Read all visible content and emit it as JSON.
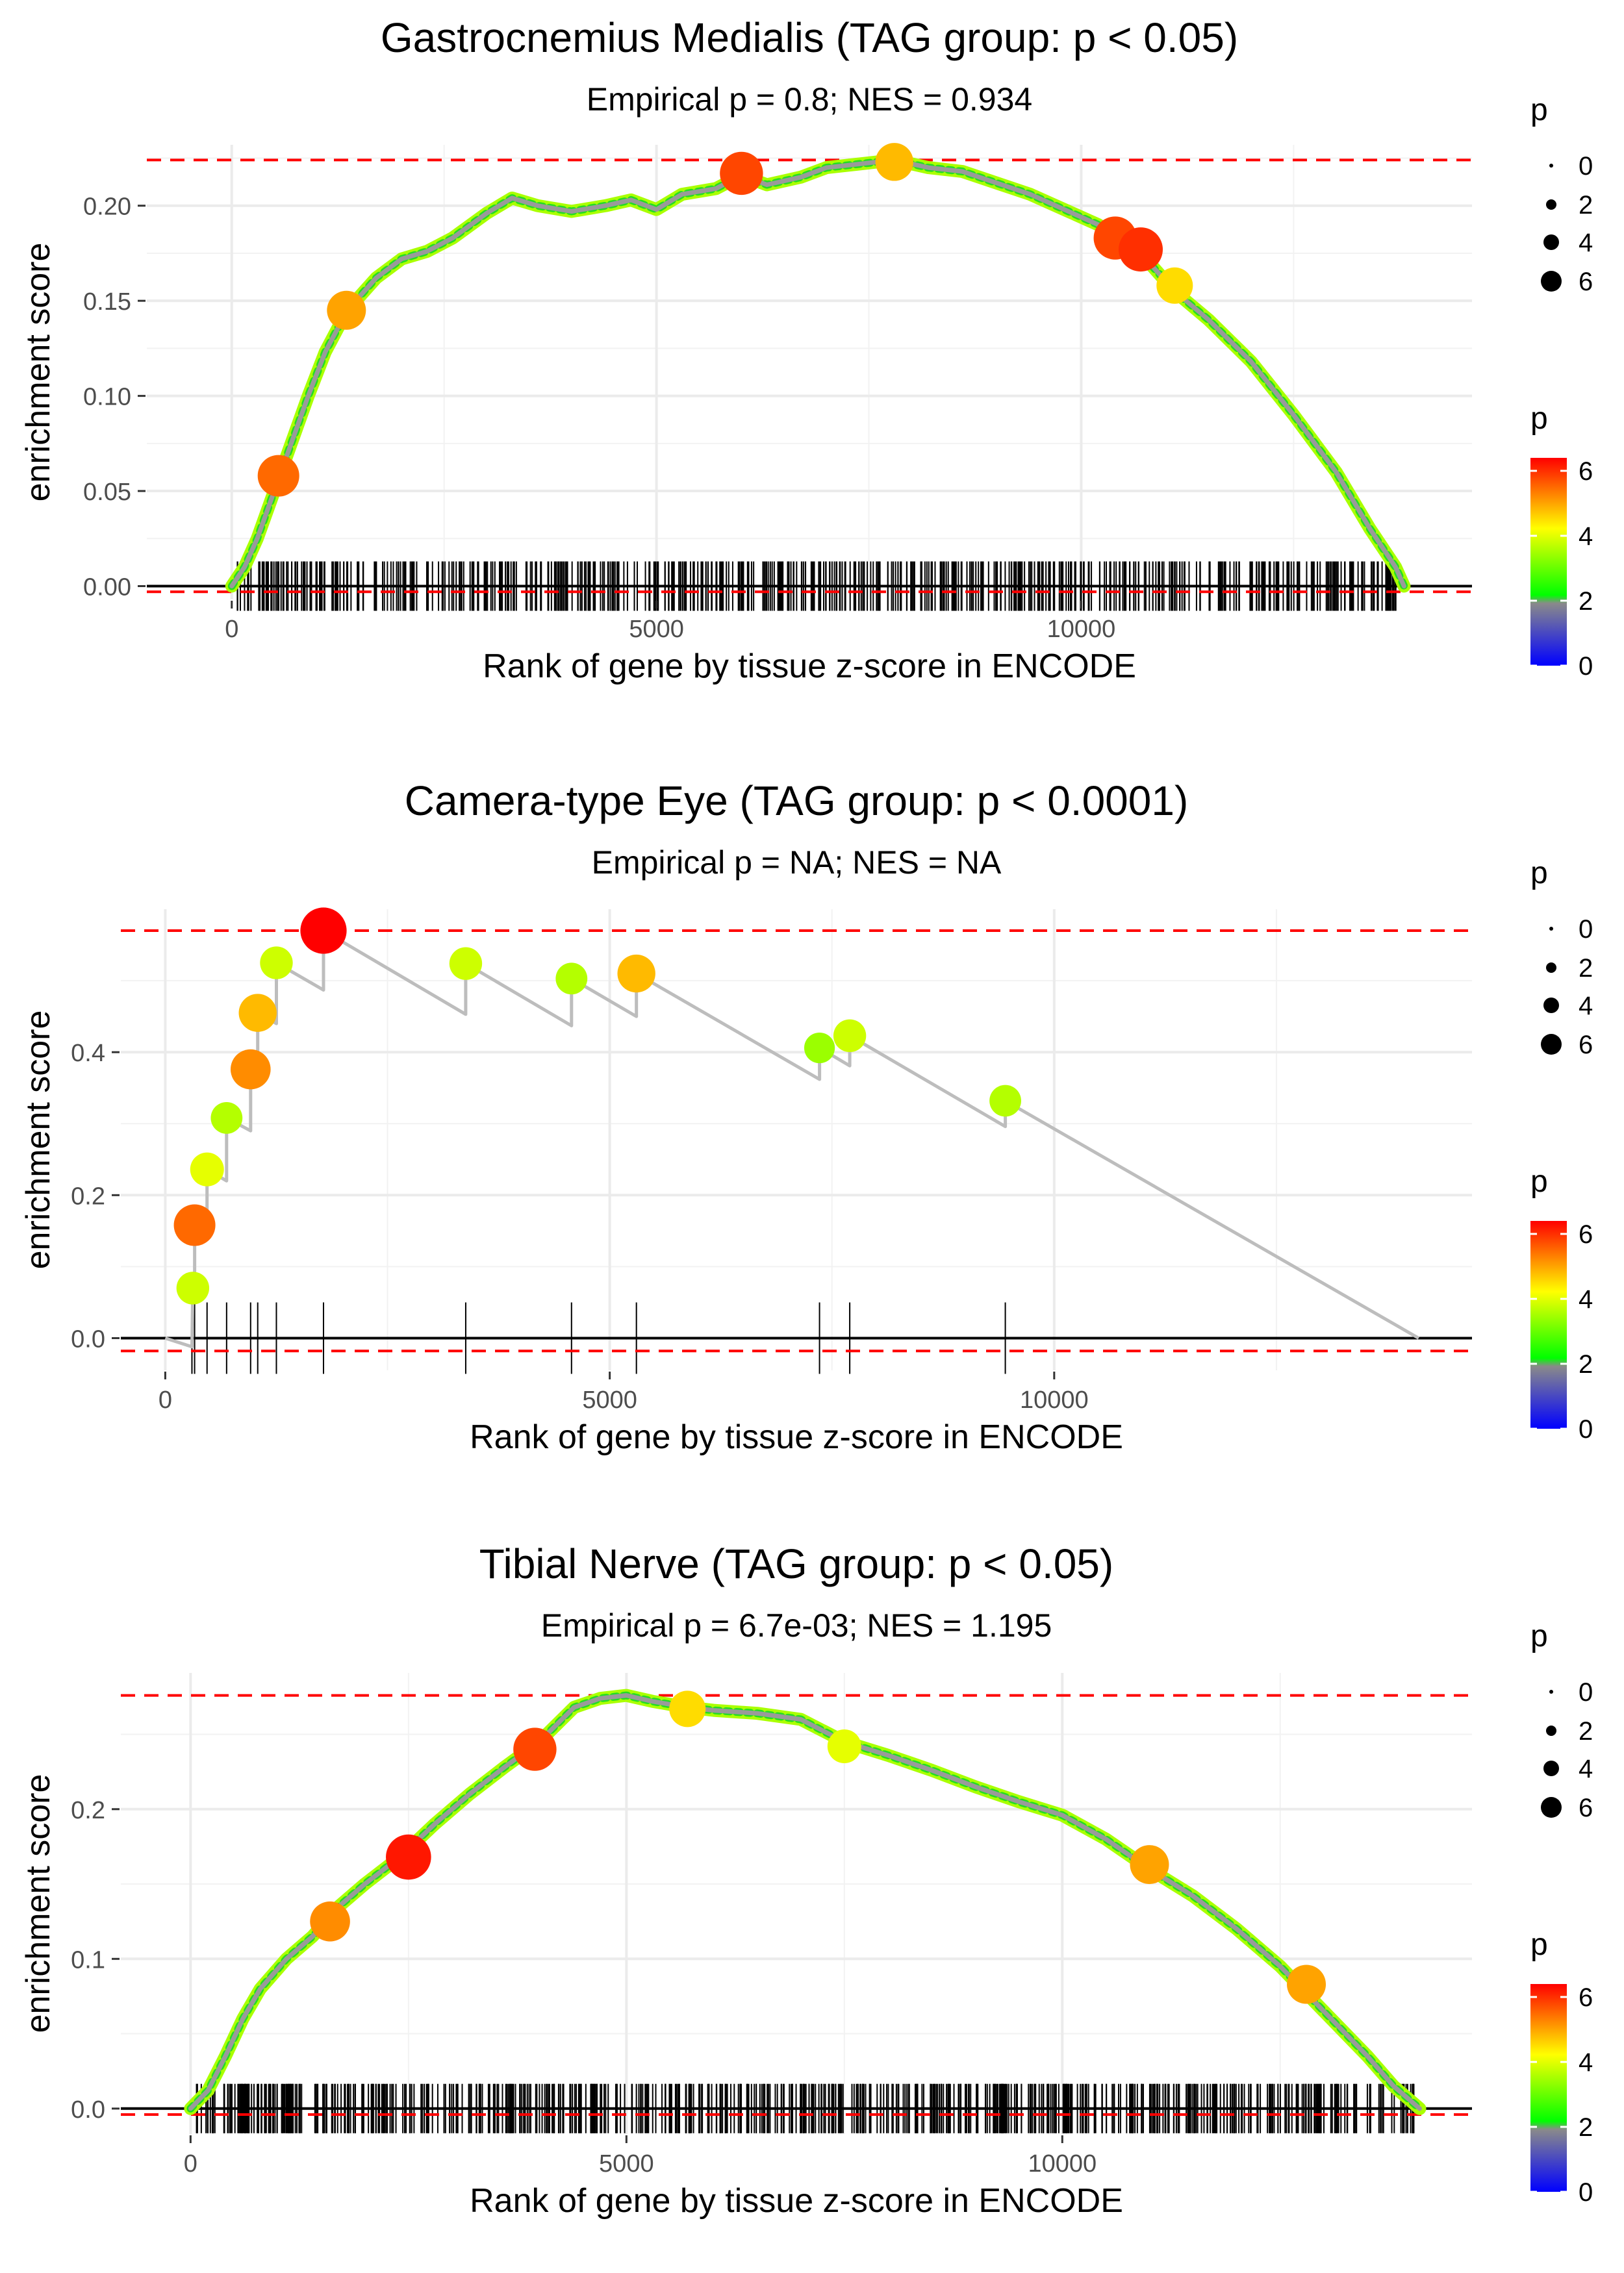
{
  "chart_data": [
    {
      "type": "line",
      "title": "Gastrocnemius Medialis (TAG group: p < 0.05)",
      "subtitle": "Empirical p = 0.8; NES = 0.934",
      "xlabel": "Rank of gene by tissue z-score in ENCODE",
      "ylabel": "enrichment score",
      "xlim": [
        -1000,
        14600
      ],
      "ylim": [
        -0.007,
        0.232
      ],
      "xticks": [
        0,
        5000,
        10000
      ],
      "xtick_labels": [
        "0",
        "5000",
        "10000"
      ],
      "yticks": [
        0,
        0.05,
        0.1,
        0.15,
        0.2
      ],
      "ytick_labels": [
        "0.00",
        "0.05",
        "0.10",
        "0.15",
        "0.20"
      ],
      "max_es": 0.224,
      "min_es": -0.003,
      "x_end": 13800,
      "curve": [
        [
          0,
          0
        ],
        [
          150,
          0.01
        ],
        [
          300,
          0.025
        ],
        [
          500,
          0.05
        ],
        [
          700,
          0.075
        ],
        [
          900,
          0.1
        ],
        [
          1100,
          0.123
        ],
        [
          1300,
          0.14
        ],
        [
          1500,
          0.152
        ],
        [
          1700,
          0.162
        ],
        [
          2000,
          0.172
        ],
        [
          2300,
          0.176
        ],
        [
          2600,
          0.183
        ],
        [
          3000,
          0.196
        ],
        [
          3300,
          0.204
        ],
        [
          3600,
          0.2
        ],
        [
          4000,
          0.197
        ],
        [
          4400,
          0.2
        ],
        [
          4700,
          0.203
        ],
        [
          5000,
          0.198
        ],
        [
          5300,
          0.206
        ],
        [
          5700,
          0.209
        ],
        [
          6000,
          0.216
        ],
        [
          6300,
          0.211
        ],
        [
          6700,
          0.215
        ],
        [
          7000,
          0.22
        ],
        [
          7400,
          0.222
        ],
        [
          7800,
          0.224
        ],
        [
          8200,
          0.22
        ],
        [
          8600,
          0.218
        ],
        [
          9000,
          0.212
        ],
        [
          9400,
          0.206
        ],
        [
          9800,
          0.198
        ],
        [
          10200,
          0.19
        ],
        [
          10500,
          0.181
        ],
        [
          10800,
          0.17
        ],
        [
          11100,
          0.155
        ],
        [
          11500,
          0.14
        ],
        [
          12000,
          0.118
        ],
        [
          12500,
          0.09
        ],
        [
          13000,
          0.06
        ],
        [
          13400,
          0.03
        ],
        [
          13700,
          0.01
        ],
        [
          13800,
          0
        ]
      ],
      "highlight_points": [
        {
          "x": 550,
          "y": 0.058,
          "p": 5.5
        },
        {
          "x": 1350,
          "y": 0.145,
          "p": 5.0
        },
        {
          "x": 6000,
          "y": 0.217,
          "p": 5.8
        },
        {
          "x": 7800,
          "y": 0.223,
          "p": 4.8
        },
        {
          "x": 10400,
          "y": 0.183,
          "p": 5.8
        },
        {
          "x": 10700,
          "y": 0.177,
          "p": 6.0
        },
        {
          "x": 11100,
          "y": 0.158,
          "p": 4.5
        }
      ],
      "rug": {
        "mode": "dense",
        "seed": 11,
        "count": 600,
        "min": 60,
        "max": 13750
      },
      "legend_size_title": "p",
      "legend_size_values": [
        "0",
        "2",
        "4",
        "6"
      ],
      "legend_color_title": "p",
      "legend_color_values": [
        "6",
        "4",
        "2",
        "0"
      ]
    },
    {
      "type": "line",
      "title": "Camera-type Eye (TAG group: p < 0.0001)",
      "subtitle": "Empirical p = NA; NES = NA",
      "xlabel": "Rank of gene by tissue z-score in ENCODE",
      "ylabel": "enrichment score",
      "xlim": [
        -500,
        14700
      ],
      "ylim": [
        -0.045,
        0.6
      ],
      "xticks": [
        0,
        5000,
        10000
      ],
      "xtick_labels": [
        "0",
        "5000",
        "10000"
      ],
      "yticks": [
        0,
        0.2,
        0.4
      ],
      "ytick_labels": [
        "0.0",
        "0.2",
        "0.4"
      ],
      "max_es": 0.57,
      "min_es": -0.018,
      "x_end": 14100,
      "curve": [
        [
          0,
          0
        ],
        [
          300,
          -0.012
        ],
        [
          310,
          0.07
        ],
        [
          330,
          0.07
        ],
        [
          330,
          0.158
        ],
        [
          470,
          0.152
        ],
        [
          470,
          0.236
        ],
        [
          690,
          0.22
        ],
        [
          690,
          0.308
        ],
        [
          960,
          0.29
        ],
        [
          960,
          0.376
        ],
        [
          1040,
          0.37
        ],
        [
          1040,
          0.455
        ],
        [
          1250,
          0.44
        ],
        [
          1250,
          0.525
        ],
        [
          1780,
          0.487
        ],
        [
          1780,
          0.57
        ],
        [
          3380,
          0.453
        ],
        [
          3380,
          0.524
        ],
        [
          4570,
          0.437
        ],
        [
          4570,
          0.503
        ],
        [
          5300,
          0.45
        ],
        [
          5300,
          0.51
        ],
        [
          7360,
          0.362
        ],
        [
          7360,
          0.406
        ],
        [
          7700,
          0.381
        ],
        [
          7700,
          0.423
        ],
        [
          9450,
          0.296
        ],
        [
          9450,
          0.332
        ],
        [
          14100,
          0
        ]
      ],
      "highlight_points": [
        {
          "x": 310,
          "y": 0.07,
          "p": 3.8
        },
        {
          "x": 330,
          "y": 0.158,
          "p": 5.5
        },
        {
          "x": 470,
          "y": 0.236,
          "p": 4.0
        },
        {
          "x": 690,
          "y": 0.308,
          "p": 3.6
        },
        {
          "x": 960,
          "y": 0.376,
          "p": 5.2
        },
        {
          "x": 1040,
          "y": 0.455,
          "p": 4.8
        },
        {
          "x": 1250,
          "y": 0.525,
          "p": 3.8
        },
        {
          "x": 1780,
          "y": 0.57,
          "p": 6.4
        },
        {
          "x": 3380,
          "y": 0.524,
          "p": 3.8
        },
        {
          "x": 4570,
          "y": 0.503,
          "p": 3.6
        },
        {
          "x": 5300,
          "y": 0.51,
          "p": 4.8
        },
        {
          "x": 7360,
          "y": 0.406,
          "p": 3.4
        },
        {
          "x": 7700,
          "y": 0.423,
          "p": 3.8
        },
        {
          "x": 9450,
          "y": 0.332,
          "p": 3.6
        }
      ],
      "rug": {
        "mode": "list",
        "positions": [
          300,
          330,
          470,
          690,
          960,
          1040,
          1250,
          1780,
          3380,
          4570,
          5300,
          7360,
          7700,
          9450
        ]
      },
      "legend_size_title": "p",
      "legend_size_values": [
        "0",
        "2",
        "4",
        "6"
      ],
      "legend_color_title": "p",
      "legend_color_values": [
        "6",
        "4",
        "2",
        "0"
      ]
    },
    {
      "type": "line",
      "title": "Tibial Nerve (TAG group: p < 0.05)",
      "subtitle": "Empirical p = 6.7e-03; NES = 1.195",
      "xlabel": "Rank of gene by tissue z-score in ENCODE",
      "ylabel": "enrichment score",
      "xlim": [
        -800,
        14700
      ],
      "ylim": [
        -0.017,
        0.291
      ],
      "xticks": [
        0,
        5000,
        10000
      ],
      "xtick_labels": [
        "0",
        "5000",
        "10000"
      ],
      "yticks": [
        0,
        0.1,
        0.2
      ],
      "ytick_labels": [
        "0.0",
        "0.1",
        "0.2"
      ],
      "max_es": 0.276,
      "min_es": -0.004,
      "x_end": 14100,
      "curve": [
        [
          0,
          0
        ],
        [
          200,
          0.012
        ],
        [
          400,
          0.035
        ],
        [
          600,
          0.06
        ],
        [
          800,
          0.08
        ],
        [
          1100,
          0.1
        ],
        [
          1400,
          0.115
        ],
        [
          1700,
          0.135
        ],
        [
          2000,
          0.15
        ],
        [
          2400,
          0.168
        ],
        [
          2800,
          0.19
        ],
        [
          3200,
          0.21
        ],
        [
          3600,
          0.228
        ],
        [
          4000,
          0.245
        ],
        [
          4400,
          0.268
        ],
        [
          4700,
          0.274
        ],
        [
          5000,
          0.276
        ],
        [
          5300,
          0.272
        ],
        [
          5700,
          0.268
        ],
        [
          6000,
          0.266
        ],
        [
          6500,
          0.264
        ],
        [
          7000,
          0.26
        ],
        [
          7500,
          0.245
        ],
        [
          8000,
          0.236
        ],
        [
          8500,
          0.226
        ],
        [
          9000,
          0.215
        ],
        [
          9500,
          0.205
        ],
        [
          10000,
          0.196
        ],
        [
          10500,
          0.18
        ],
        [
          11000,
          0.16
        ],
        [
          11500,
          0.142
        ],
        [
          12000,
          0.12
        ],
        [
          12500,
          0.095
        ],
        [
          13000,
          0.065
        ],
        [
          13500,
          0.035
        ],
        [
          13800,
          0.015
        ],
        [
          14100,
          0
        ]
      ],
      "highlight_points": [
        {
          "x": 1600,
          "y": 0.125,
          "p": 5.2
        },
        {
          "x": 2500,
          "y": 0.168,
          "p": 6.2
        },
        {
          "x": 3950,
          "y": 0.24,
          "p": 5.8
        },
        {
          "x": 5700,
          "y": 0.267,
          "p": 4.5
        },
        {
          "x": 7500,
          "y": 0.242,
          "p": 4.0
        },
        {
          "x": 11000,
          "y": 0.163,
          "p": 5.0
        },
        {
          "x": 12800,
          "y": 0.083,
          "p": 5.0
        }
      ],
      "rug": {
        "mode": "dense",
        "seed": 23,
        "count": 700,
        "min": 60,
        "max": 14050
      },
      "legend_size_title": "p",
      "legend_size_values": [
        "0",
        "2",
        "4",
        "6"
      ],
      "legend_color_title": "p",
      "legend_color_values": [
        "6",
        "4",
        "2",
        "0"
      ]
    }
  ]
}
